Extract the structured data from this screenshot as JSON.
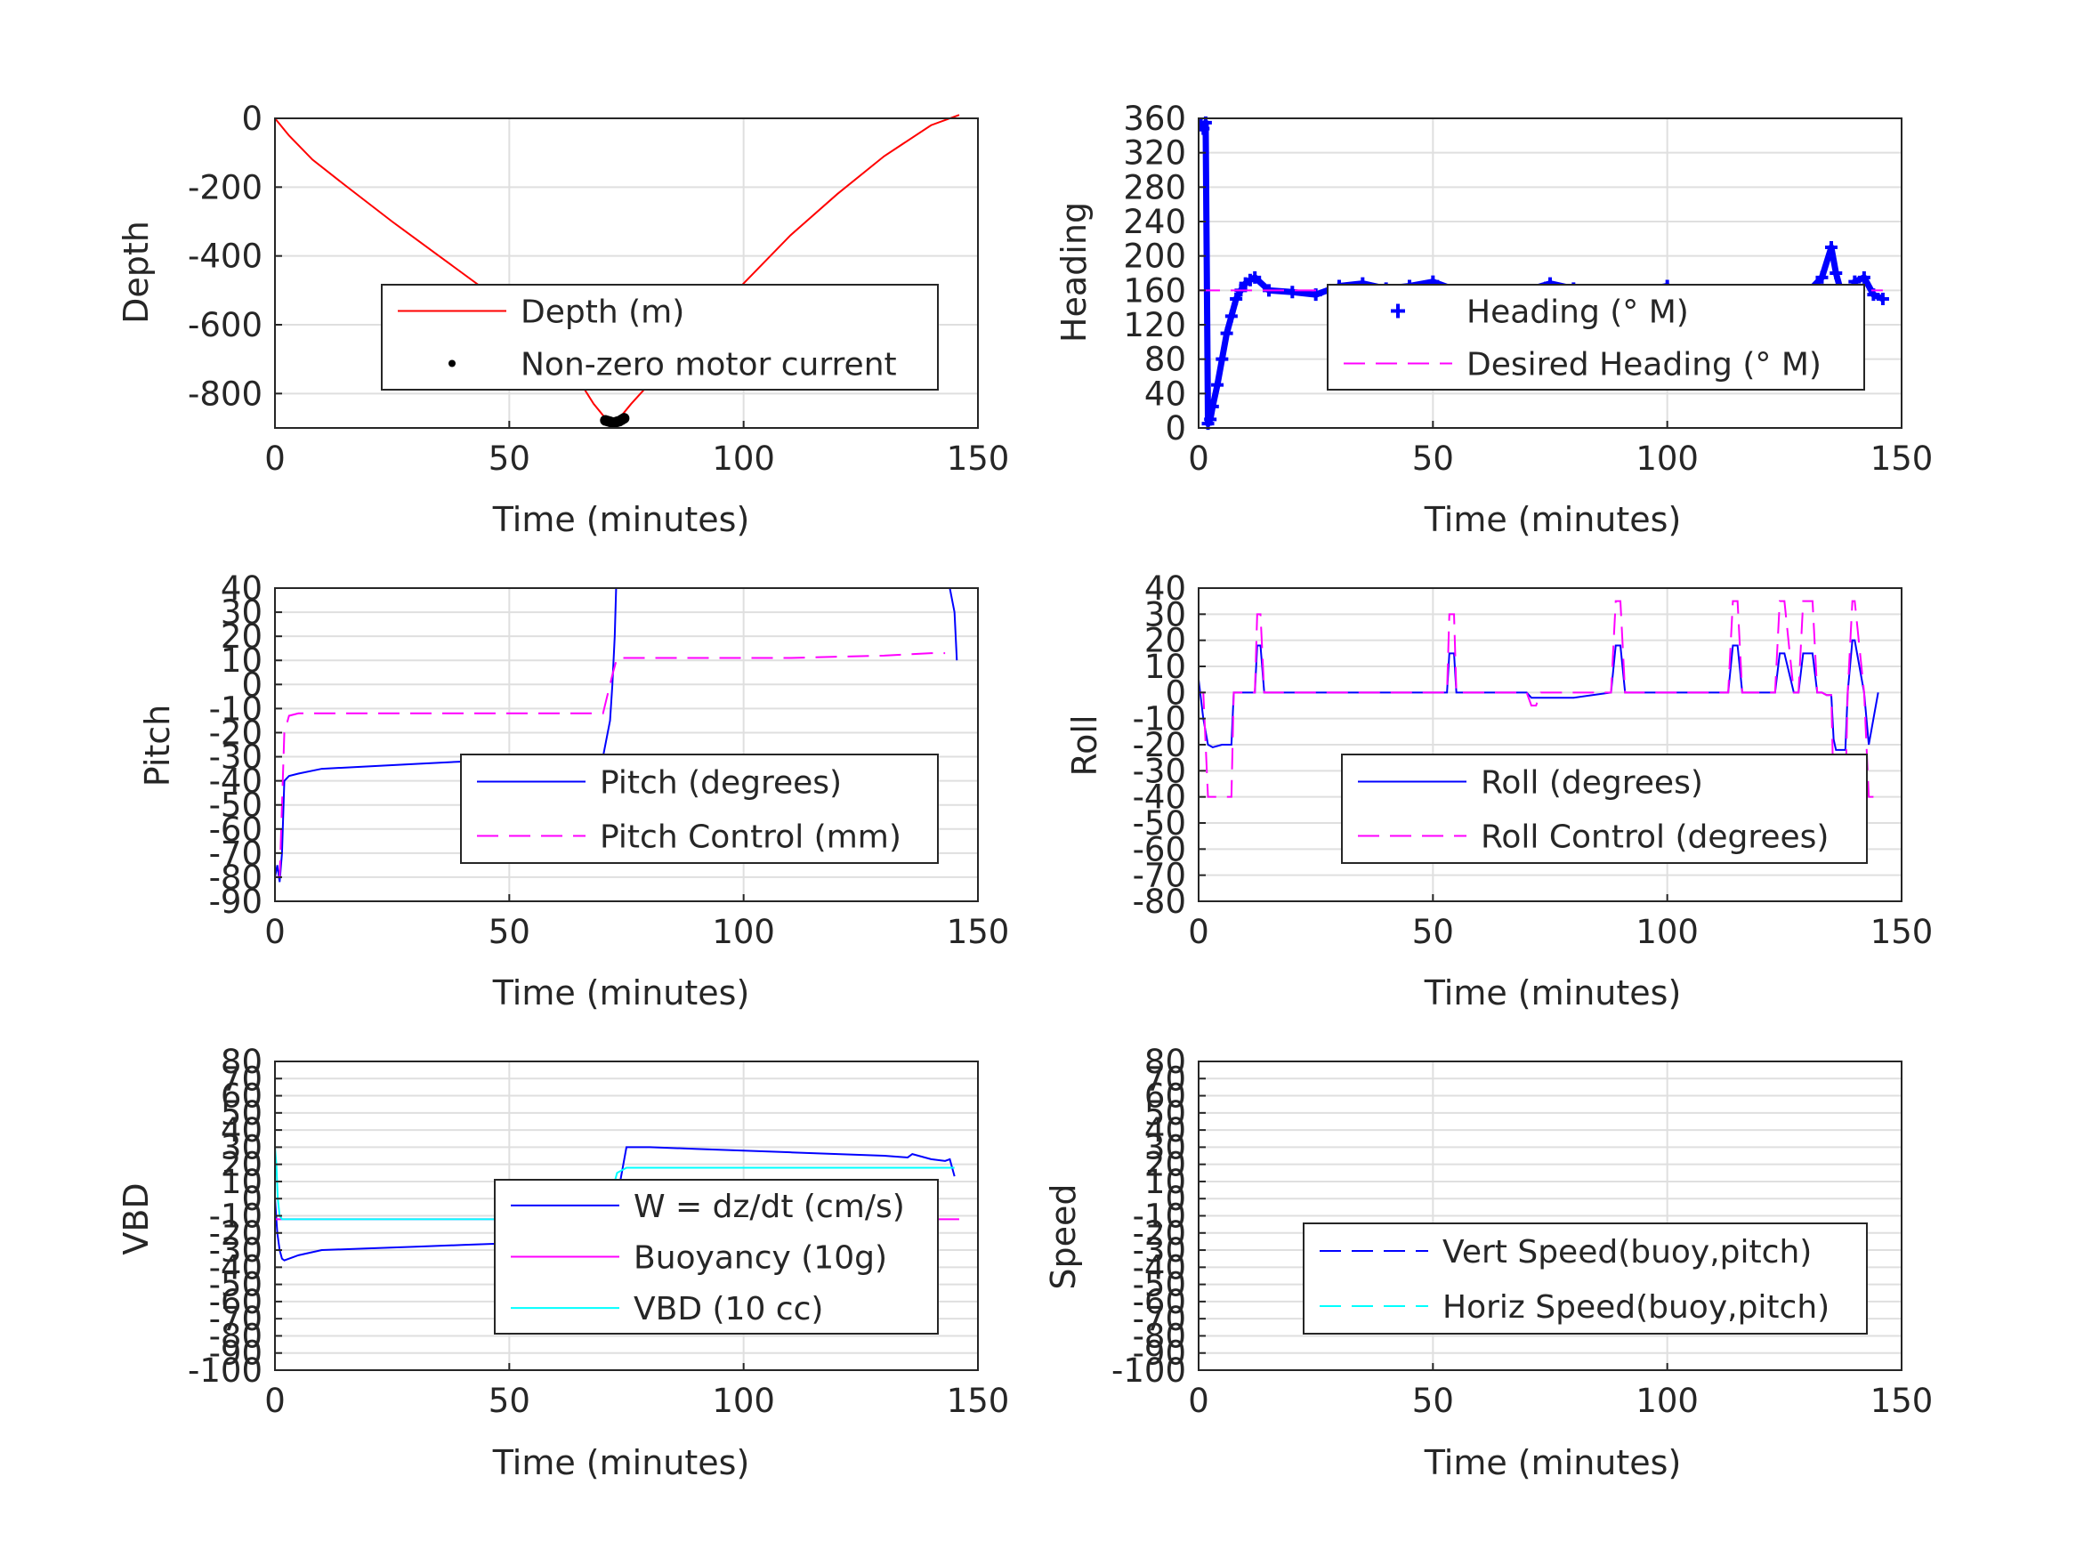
{
  "figure": {
    "panels": [
      {
        "id": "depth",
        "ylabel": "Depth",
        "xlabel": "Time (minutes)"
      },
      {
        "id": "heading",
        "ylabel": "Heading",
        "xlabel": "Time (minutes)"
      },
      {
        "id": "pitch",
        "ylabel": "Pitch",
        "xlabel": "Time (minutes)"
      },
      {
        "id": "roll",
        "ylabel": "Roll",
        "xlabel": "Time (minutes)"
      },
      {
        "id": "vbd",
        "ylabel": "VBD",
        "xlabel": "Time (minutes)"
      },
      {
        "id": "speed",
        "ylabel": "Speed",
        "xlabel": "Time (minutes)"
      }
    ]
  },
  "chart_data": [
    {
      "type": "line",
      "xlabel": "Time (minutes)",
      "ylabel": "Depth",
      "xlim": [
        0,
        150
      ],
      "ylim": [
        -900,
        0
      ],
      "xticks": [
        0,
        50,
        100,
        150
      ],
      "yticks": [
        0,
        -200,
        -400,
        -600,
        -800
      ],
      "grid": true,
      "legend_location": "lower-right",
      "series": [
        {
          "name": "Depth (m)",
          "color": "#ff0000",
          "style": "solid",
          "x": [
            0,
            3,
            8,
            15,
            25,
            35,
            45,
            55,
            62,
            68,
            71,
            73,
            76,
            82,
            90,
            100,
            110,
            120,
            130,
            140,
            146
          ],
          "y": [
            0,
            -50,
            -120,
            -195,
            -300,
            -400,
            -500,
            -600,
            -700,
            -830,
            -880,
            -880,
            -830,
            -740,
            -620,
            -480,
            -340,
            -220,
            -110,
            -20,
            10
          ]
        },
        {
          "name": "Non-zero motor current",
          "color": "#000000",
          "style": "marker",
          "x": [
            70.5,
            71,
            71.5,
            72,
            72.5,
            73,
            73.5,
            74,
            74.5
          ],
          "y": [
            -878,
            -880,
            -882,
            -884,
            -884,
            -882,
            -880,
            -876,
            -872
          ]
        }
      ]
    },
    {
      "type": "scatter",
      "xlabel": "Time (minutes)",
      "ylabel": "Heading",
      "xlim": [
        0,
        150
      ],
      "ylim": [
        0,
        360
      ],
      "xticks": [
        0,
        50,
        100,
        150
      ],
      "yticks": [
        0,
        40,
        80,
        120,
        160,
        200,
        240,
        280,
        320,
        360
      ],
      "grid": true,
      "legend_location": "lower-right",
      "series": [
        {
          "name": "Heading (° M)",
          "color": "#0000ff",
          "style": "plus",
          "x": [
            0.5,
            1,
            1.5,
            2,
            2.5,
            3,
            4,
            5,
            6,
            7,
            8,
            9,
            10,
            11,
            12,
            15,
            20,
            25,
            30,
            35,
            40,
            45,
            50,
            55,
            60,
            65,
            70,
            75,
            80,
            85,
            90,
            95,
            100,
            105,
            110,
            115,
            120,
            125,
            130,
            133,
            135,
            136,
            137,
            138,
            139,
            140,
            142,
            144,
            146
          ],
          "y": [
            352,
            348,
            355,
            5,
            10,
            25,
            50,
            80,
            110,
            130,
            150,
            160,
            168,
            172,
            175,
            160,
            158,
            155,
            165,
            168,
            162,
            165,
            170,
            160,
            155,
            150,
            160,
            168,
            162,
            155,
            140,
            160,
            165,
            150,
            140,
            160,
            130,
            150,
            158,
            175,
            210,
            180,
            160,
            120,
            140,
            170,
            175,
            155,
            150
          ]
        },
        {
          "name": "Desired Heading (° M)",
          "color": "#ff00ff",
          "style": "dashed",
          "x": [
            0,
            146
          ],
          "y": [
            160,
            160
          ]
        }
      ]
    },
    {
      "type": "line",
      "xlabel": "Time (minutes)",
      "ylabel": "Pitch",
      "xlim": [
        0,
        150
      ],
      "ylim": [
        -90,
        40
      ],
      "xticks": [
        0,
        50,
        100,
        150
      ],
      "yticks": [
        40,
        30,
        20,
        10,
        0,
        -10,
        -20,
        -30,
        -40,
        -50,
        -60,
        -70,
        -80,
        -90
      ],
      "grid": true,
      "legend_location": "lower-right",
      "series": [
        {
          "name": "Pitch (degrees)",
          "color": "#0000ff",
          "style": "solid",
          "x": [
            0,
            0.5,
            1,
            1.5,
            2,
            3,
            5,
            10,
            20,
            30,
            40,
            50,
            60,
            65,
            70,
            71,
            71.5,
            72,
            72.5,
            72.8,
            73,
            90,
            110,
            130,
            144,
            145,
            145.5
          ],
          "y": [
            -80,
            -75,
            -82,
            -70,
            -40,
            -38,
            -37,
            -35,
            -34,
            -33,
            -32,
            -32,
            -31,
            -31,
            -30,
            -20,
            -15,
            0,
            20,
            40,
            40,
            40,
            40,
            40,
            40,
            30,
            10
          ]
        },
        {
          "name": "Pitch Control (mm)",
          "color": "#ff00ff",
          "style": "dashed",
          "x": [
            0,
            1,
            2,
            3,
            5,
            20,
            40,
            60,
            70,
            71,
            72,
            73,
            90,
            110,
            130,
            140,
            143
          ],
          "y": [
            -80,
            -80,
            -20,
            -13,
            -12,
            -12,
            -12,
            -12,
            -12,
            -4,
            4,
            11,
            11,
            11,
            12,
            13,
            13
          ]
        }
      ]
    },
    {
      "type": "line",
      "xlabel": "Time (minutes)",
      "ylabel": "Roll",
      "xlim": [
        0,
        150
      ],
      "ylim": [
        -80,
        40
      ],
      "xticks": [
        0,
        50,
        100,
        150
      ],
      "yticks": [
        40,
        30,
        20,
        10,
        0,
        -10,
        -20,
        -30,
        -40,
        -50,
        -60,
        -70,
        -80
      ],
      "grid": true,
      "legend_location": "lower-right",
      "series": [
        {
          "name": "Roll (degrees)",
          "color": "#0000ff",
          "style": "solid",
          "x": [
            0,
            1,
            2,
            3,
            5,
            7,
            7.5,
            8,
            12,
            12.5,
            13.2,
            14,
            30,
            50,
            53,
            53.5,
            54.5,
            55,
            70,
            71,
            80,
            88,
            89,
            90,
            91,
            100,
            113,
            114,
            115,
            116,
            123,
            124,
            125,
            127,
            128,
            129,
            131,
            132,
            133,
            134,
            135,
            135.5,
            136,
            138,
            138.5,
            139.5,
            140,
            142,
            143,
            144,
            145
          ],
          "y": [
            5,
            -10,
            -20,
            -21,
            -20,
            -20,
            0,
            0,
            0,
            18,
            18,
            0,
            0,
            0,
            0,
            15,
            15,
            0,
            0,
            -2,
            -2,
            0,
            18,
            18,
            0,
            0,
            0,
            18,
            18,
            0,
            0,
            15,
            15,
            0,
            0,
            15,
            15,
            0,
            0,
            -1,
            -1,
            -18,
            -22,
            -22,
            0,
            20,
            20,
            0,
            -20,
            -10,
            0
          ]
        },
        {
          "name": "Roll Control (degrees)",
          "color": "#ff00ff",
          "style": "dashed",
          "x": [
            0,
            1,
            2,
            3,
            7,
            7.5,
            8,
            12,
            12.5,
            13.2,
            14,
            53,
            53.5,
            54.5,
            55,
            70,
            71,
            72,
            73,
            88,
            89,
            90,
            91,
            113,
            114,
            115,
            116,
            123,
            124,
            125,
            127,
            128,
            129,
            131,
            132,
            133,
            134,
            135,
            135.5,
            136,
            138,
            138.5,
            139.5,
            140,
            142,
            143,
            144
          ],
          "y": [
            0,
            0,
            -40,
            -40,
            -40,
            0,
            0,
            0,
            30,
            30,
            0,
            0,
            30,
            30,
            0,
            0,
            -5,
            -5,
            0,
            0,
            35,
            35,
            0,
            0,
            35,
            35,
            0,
            0,
            35,
            35,
            0,
            0,
            35,
            35,
            0,
            0,
            -1,
            -1,
            -40,
            -40,
            -40,
            0,
            35,
            35,
            0,
            -40,
            -40
          ]
        }
      ]
    },
    {
      "type": "line",
      "xlabel": "Time (minutes)",
      "ylabel": "VBD",
      "xlim": [
        0,
        150
      ],
      "ylim": [
        -100,
        80
      ],
      "xticks": [
        0,
        50,
        100,
        150
      ],
      "yticks": [
        80,
        70,
        60,
        50,
        40,
        30,
        20,
        10,
        0,
        -10,
        -20,
        -30,
        -40,
        -50,
        -60,
        -70,
        -80,
        -90,
        -100
      ],
      "ytick_labels": [
        "80",
        "70",
        "60",
        "50",
        "40",
        "30",
        "20",
        "10",
        "0",
        "-10",
        "-20",
        "-30",
        "-40",
        "-50",
        "-60",
        "-70",
        "-80",
        "-90",
        "-100"
      ],
      "grid": true,
      "legend_location": "lower-right",
      "series": [
        {
          "name": "W = dz/dt (cm/s)",
          "color": "#0000ff",
          "style": "solid",
          "x": [
            0,
            0.5,
            1,
            1.5,
            2,
            3,
            5,
            10,
            20,
            30,
            40,
            50,
            60,
            65,
            70,
            71,
            72,
            73,
            75,
            80,
            90,
            100,
            110,
            120,
            130,
            135,
            136,
            140,
            143,
            144,
            145
          ],
          "y": [
            0,
            -20,
            -30,
            -35,
            -36,
            -35,
            -33,
            -30,
            -29,
            -28,
            -27,
            -26,
            -25,
            -25,
            -24,
            -20,
            -10,
            0,
            30,
            30,
            29,
            28,
            27,
            26,
            25,
            24,
            26,
            23,
            22,
            23,
            13
          ]
        },
        {
          "name": "Buoyancy (10g)",
          "color": "#ff00ff",
          "style": "solid",
          "x": [
            0,
            146
          ],
          "y": [
            -12,
            -12
          ]
        },
        {
          "name": "VBD (10 cc)",
          "color": "#00ffff",
          "style": "solid",
          "x": [
            0,
            0.3,
            0.6,
            1,
            1.5,
            2,
            3,
            10,
            30,
            50,
            70,
            71,
            72,
            73,
            75,
            100,
            130,
            145
          ],
          "y": [
            30,
            20,
            0,
            -10,
            -12,
            -12,
            -12,
            -12,
            -12,
            -12,
            -12,
            -5,
            5,
            15,
            18,
            18,
            18,
            18
          ]
        }
      ]
    },
    {
      "type": "line",
      "xlabel": "Time (minutes)",
      "ylabel": "Speed",
      "xlim": [
        0,
        150
      ],
      "ylim": [
        -100,
        80
      ],
      "xticks": [
        0,
        50,
        100,
        150
      ],
      "yticks": [
        80,
        70,
        60,
        50,
        40,
        30,
        20,
        10,
        0,
        -10,
        -20,
        -30,
        -40,
        -50,
        -60,
        -70,
        -80,
        -90,
        -100
      ],
      "ytick_labels": [
        "80",
        "70",
        "60",
        "50",
        "40",
        "30",
        "20",
        "10",
        "0",
        "-10",
        "-20",
        "-30",
        "-40",
        "-50",
        "-60",
        "-70",
        "-80",
        "-90",
        "-100"
      ],
      "grid": true,
      "legend_location": "lower-right",
      "series": [
        {
          "name": "Vert Speed(buoy,pitch)",
          "color": "#0000ff",
          "style": "dashed",
          "x": [],
          "y": []
        },
        {
          "name": "Horiz Speed(buoy,pitch)",
          "color": "#00ffff",
          "style": "dashed",
          "x": [],
          "y": []
        }
      ]
    }
  ]
}
